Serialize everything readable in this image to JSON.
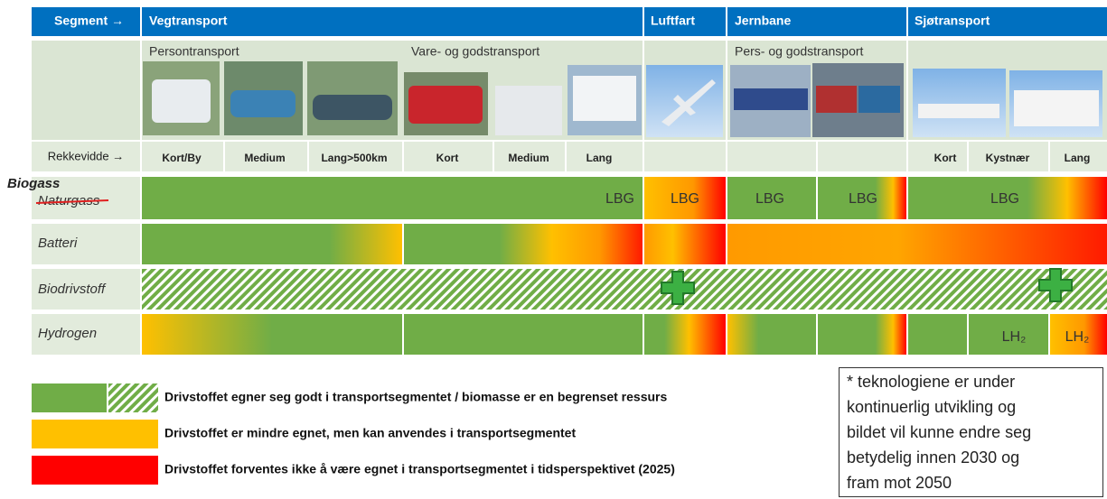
{
  "header": {
    "segment_label": "Segment →",
    "segments": [
      "Vegtransport",
      "Luftfart",
      "Jernbane",
      "Sjøtransport"
    ]
  },
  "subheaders": [
    "Persontransport",
    "Vare- og godstransport",
    "Pers- og godstransport"
  ],
  "range": {
    "label": "Rekkevidde →",
    "values": [
      "Kort/By",
      "Medium",
      "Lang>500km",
      "Kort",
      "Medium",
      "Lang",
      "Kort",
      "Kystnær",
      "Lang"
    ]
  },
  "rows": [
    {
      "name": "Naturgass",
      "overlay": "Biogass",
      "labels": [
        "LBG",
        "LBG",
        "LBG",
        "LBG",
        "LBG"
      ]
    },
    {
      "name": "Batteri"
    },
    {
      "name": "Biodrivstoff"
    },
    {
      "name": "Hydrogen",
      "labels": [
        "LH₂",
        "LH₂"
      ]
    }
  ],
  "legend": [
    "Drivstoffet egner seg godt i transportsegmentet / biomasse er en begrenset ressurs",
    "Drivstoffet er mindre egnet, men kan anvendes i transportsegmentet",
    "Drivstoffet forventes ikke å være egnet i transportsegmentet i tidsperspektivet (2025)"
  ],
  "note": {
    "lines": [
      "* teknologiene er under",
      "kontinuerlig utvikling og",
      "bildet vil kunne endre seg",
      "betydelig innen 2030 og",
      "fram mot 2050"
    ]
  }
}
